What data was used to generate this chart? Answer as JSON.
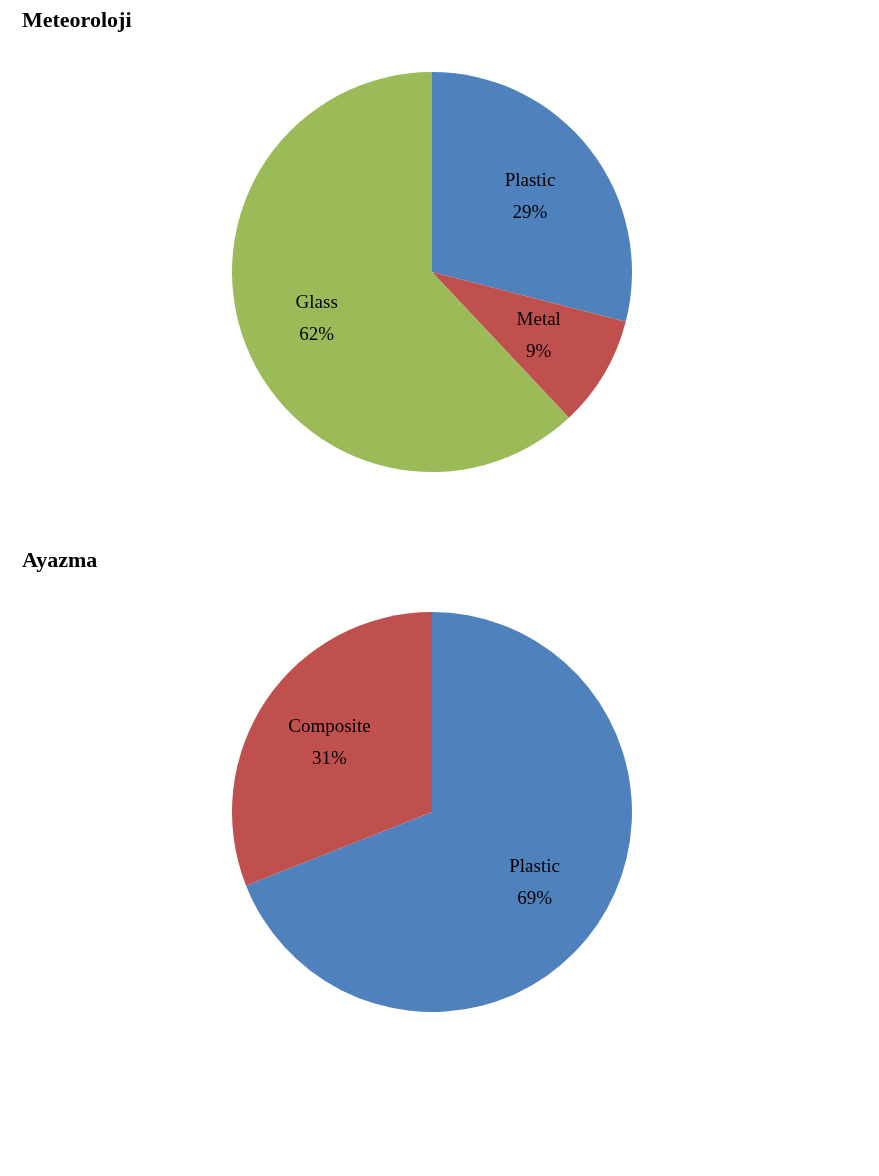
{
  "chart_data": [
    {
      "type": "pie",
      "title": "Meteoroloji",
      "categories": [
        "Plastic",
        "Metal",
        "Glass"
      ],
      "values": [
        29,
        9,
        62
      ],
      "value_labels": [
        "29%",
        "9%",
        "62%"
      ],
      "colors": [
        "#4f81bd",
        "#c0504d",
        "#9bbb59"
      ],
      "legend": false
    },
    {
      "type": "pie",
      "title": "Ayazma",
      "categories": [
        "Plastic",
        "Composite"
      ],
      "values": [
        69,
        31
      ],
      "value_labels": [
        "69%",
        "31%"
      ],
      "colors": [
        "#4f81bd",
        "#c0504d"
      ],
      "legend": false
    }
  ]
}
